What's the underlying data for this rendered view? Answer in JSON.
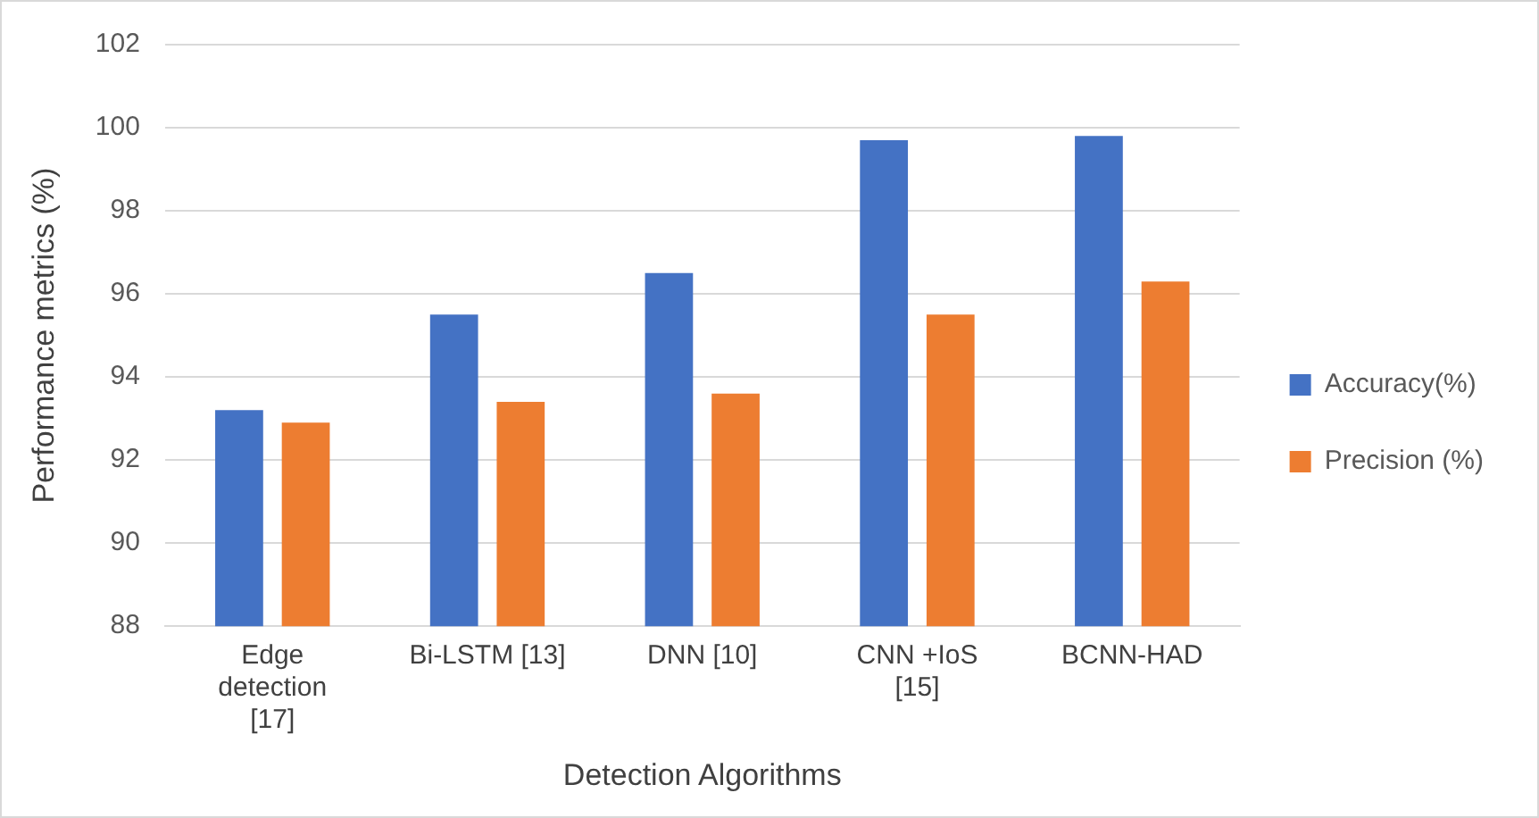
{
  "chart_data": {
    "type": "bar",
    "xlabel": "Detection Algorithms",
    "ylabel": "Performance metrics (%)",
    "categories": [
      "Edge detection [17]",
      "Bi-LSTM [13]",
      "DNN [10]",
      "CNN +IoS [15]",
      "BCNN-HAD"
    ],
    "series": [
      {
        "name": "Accuracy(%)",
        "color": "#4472c4",
        "values": [
          93.2,
          95.5,
          96.5,
          99.7,
          99.8
        ]
      },
      {
        "name": "Precision (%)",
        "color": "#ed7d31",
        "values": [
          92.9,
          93.4,
          93.6,
          95.5,
          96.3
        ]
      }
    ],
    "ylim": [
      88,
      102
    ],
    "yticks": [
      88,
      90,
      92,
      94,
      96,
      98,
      100,
      102
    ],
    "grid": "y",
    "legend": "right"
  }
}
